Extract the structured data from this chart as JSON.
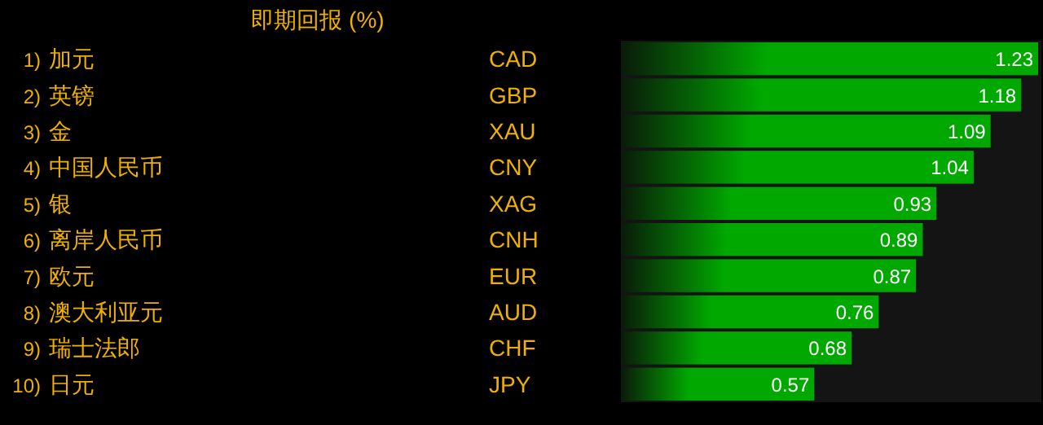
{
  "chart_data": {
    "type": "bar",
    "orientation": "horizontal",
    "title": "即期回报 (%)",
    "categories": [
      "加元",
      "英镑",
      "金",
      "中国人民币",
      "银",
      "离岸人民币",
      "欧元",
      "澳大利亚元",
      "瑞士法郎",
      "日元"
    ],
    "values": [
      1.23,
      1.18,
      1.09,
      1.04,
      0.93,
      0.89,
      0.87,
      0.76,
      0.68,
      0.57
    ],
    "color": "#00a800",
    "data_labels": true,
    "xlim": [
      0,
      1.23
    ],
    "annotations": [
      "1)",
      "2)",
      "3)",
      "4)",
      "5)",
      "6)",
      "7)",
      "8)",
      "9)",
      "10)",
      "CAD",
      "GBP",
      "XAU",
      "CNY",
      "XAG",
      "CNH",
      "EUR",
      "AUD",
      "CHF",
      "JPY"
    ]
  }
}
